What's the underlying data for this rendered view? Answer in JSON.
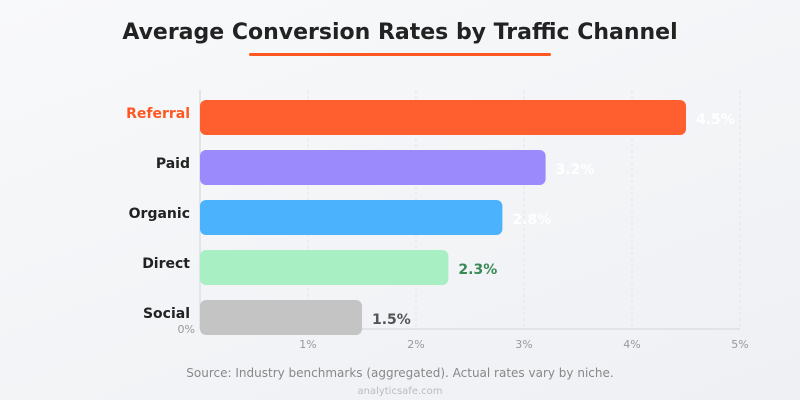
{
  "chart_data": {
    "type": "bar",
    "orientation": "horizontal",
    "title": "Average Conversion Rates by Traffic Channel",
    "categories": [
      "Referral",
      "Paid",
      "Organic",
      "Direct",
      "Social"
    ],
    "values": [
      4.5,
      3.2,
      2.8,
      2.3,
      1.5
    ],
    "value_labels": [
      "4.5%",
      "3.2%",
      "2.8%",
      "2.3%",
      "1.5%"
    ],
    "colors": [
      "#ff5f2e",
      "#9b8afb",
      "#4bb3fd",
      "#a8efc3",
      "#c4c4c4"
    ],
    "label_colors": [
      "#ffffff",
      "#ffffff",
      "#ffffff",
      "#3a8a55",
      "#555555"
    ],
    "category_label_colors": [
      "#ff5722",
      "#222222",
      "#222222",
      "#222222",
      "#222222"
    ],
    "xlim": [
      0,
      5
    ],
    "xticks": [
      0,
      1,
      2,
      3,
      4,
      5
    ],
    "xtick_labels": [
      "0%",
      "1%",
      "2%",
      "3%",
      "4%",
      "5%"
    ],
    "grid": true,
    "xlabel": "",
    "ylabel": ""
  },
  "source": "Source: Industry benchmarks (aggregated). Actual rates vary by niche.",
  "brand": "analyticsafe.com"
}
